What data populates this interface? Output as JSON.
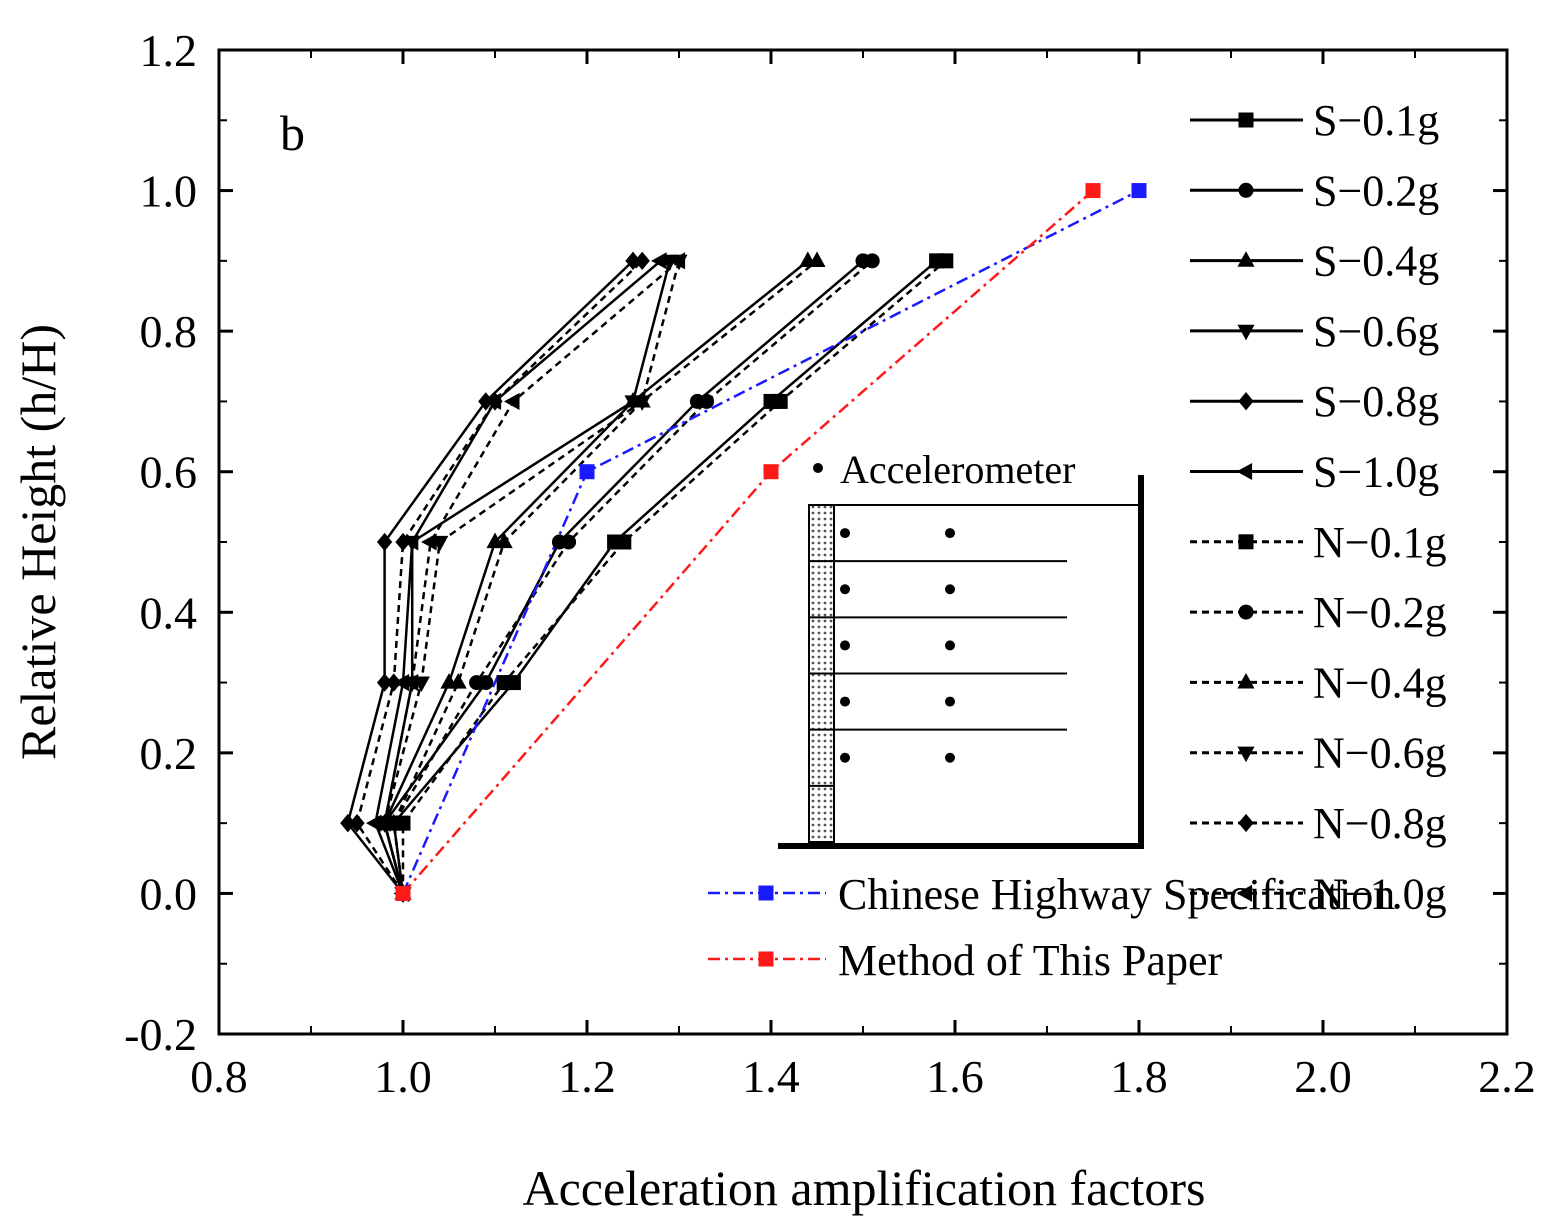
{
  "chart_data": {
    "type": "line",
    "panel_label": "b",
    "xlabel": "Acceleration amplification factors",
    "ylabel": "Relative Height (h/H)",
    "xlim": [
      0.8,
      2.2
    ],
    "ylim": [
      -0.2,
      1.2
    ],
    "x_ticks": [
      "0.8",
      "1.0",
      "1.2",
      "1.4",
      "1.6",
      "1.8",
      "2.0",
      "2.2"
    ],
    "y_ticks": [
      "-0.2",
      "0.0",
      "0.2",
      "0.4",
      "0.6",
      "0.8",
      "1.0",
      "1.2"
    ],
    "legend_position": "right",
    "series": [
      {
        "name": "S−0.1g",
        "style": "solid",
        "marker": "square",
        "color": "#000000",
        "x": [
          1.0,
          0.99,
          1.12,
          1.23,
          1.4,
          1.58
        ],
        "y": [
          0.0,
          0.1,
          0.3,
          0.5,
          0.7,
          0.9
        ]
      },
      {
        "name": "S−0.2g",
        "style": "solid",
        "marker": "circle",
        "color": "#000000",
        "x": [
          1.0,
          0.98,
          1.09,
          1.17,
          1.32,
          1.5
        ],
        "y": [
          0.0,
          0.1,
          0.3,
          0.5,
          0.7,
          0.9
        ]
      },
      {
        "name": "S−0.4g",
        "style": "solid",
        "marker": "triangle-up",
        "color": "#000000",
        "x": [
          1.0,
          0.98,
          1.05,
          1.1,
          1.25,
          1.44
        ],
        "y": [
          0.0,
          0.1,
          0.3,
          0.5,
          0.7,
          0.9
        ]
      },
      {
        "name": "S−0.6g",
        "style": "solid",
        "marker": "triangle-down",
        "color": "#000000",
        "x": [
          1.0,
          0.98,
          1.01,
          1.01,
          1.25,
          1.29
        ],
        "y": [
          0.0,
          0.1,
          0.3,
          0.5,
          0.7,
          0.9
        ]
      },
      {
        "name": "S−0.8g",
        "style": "solid",
        "marker": "diamond",
        "color": "#000000",
        "x": [
          1.0,
          0.94,
          0.98,
          0.98,
          1.09,
          1.25
        ],
        "y": [
          0.0,
          0.1,
          0.3,
          0.5,
          0.7,
          0.9
        ]
      },
      {
        "name": "S−1.0g",
        "style": "solid",
        "marker": "triangle-left",
        "color": "#000000",
        "x": [
          1.0,
          0.97,
          1.0,
          1.01,
          1.1,
          1.28
        ],
        "y": [
          0.0,
          0.1,
          0.3,
          0.5,
          0.7,
          0.9
        ]
      },
      {
        "name": "N−0.1g",
        "style": "dashed",
        "marker": "square",
        "color": "#000000",
        "x": [
          1.0,
          1.0,
          1.11,
          1.24,
          1.41,
          1.59
        ],
        "y": [
          0.0,
          0.1,
          0.3,
          0.5,
          0.7,
          0.9
        ]
      },
      {
        "name": "N−0.2g",
        "style": "dashed",
        "marker": "circle",
        "color": "#000000",
        "x": [
          1.0,
          0.99,
          1.08,
          1.18,
          1.33,
          1.51
        ],
        "y": [
          0.0,
          0.1,
          0.3,
          0.5,
          0.7,
          0.9
        ]
      },
      {
        "name": "N−0.4g",
        "style": "dashed",
        "marker": "triangle-up",
        "color": "#000000",
        "x": [
          1.0,
          0.99,
          1.06,
          1.11,
          1.26,
          1.45
        ],
        "y": [
          0.0,
          0.1,
          0.3,
          0.5,
          0.7,
          0.9
        ]
      },
      {
        "name": "N−0.6g",
        "style": "dashed",
        "marker": "triangle-down",
        "color": "#000000",
        "x": [
          1.0,
          0.98,
          1.02,
          1.04,
          1.26,
          1.3
        ],
        "y": [
          0.0,
          0.1,
          0.3,
          0.5,
          0.7,
          0.9
        ]
      },
      {
        "name": "N−0.8g",
        "style": "dashed",
        "marker": "diamond",
        "color": "#000000",
        "x": [
          1.0,
          0.95,
          0.99,
          1.0,
          1.1,
          1.26
        ],
        "y": [
          0.0,
          0.1,
          0.3,
          0.5,
          0.7,
          0.9
        ]
      },
      {
        "name": "N−1.0g",
        "style": "dashed",
        "marker": "triangle-left",
        "color": "#000000",
        "x": [
          1.0,
          0.98,
          1.01,
          1.03,
          1.12,
          1.3
        ],
        "y": [
          0.0,
          0.1,
          0.3,
          0.5,
          0.7,
          0.9
        ]
      },
      {
        "name": "Chinese Highway Specification",
        "style": "dashdot",
        "marker": "square",
        "color": "#1a1aff",
        "x": [
          1.0,
          1.2,
          1.8
        ],
        "y": [
          0.0,
          0.6,
          1.0
        ]
      },
      {
        "name": "Method of This Paper",
        "style": "dashdot",
        "marker": "square",
        "color": "#ff1a1a",
        "x": [
          1.0,
          1.4,
          1.75
        ],
        "y": [
          0.0,
          0.6,
          1.0
        ]
      }
    ],
    "inset": {
      "label": "Accelerometer",
      "layers": 6,
      "sensor_columns": 2,
      "sensor_rows": 5
    }
  }
}
